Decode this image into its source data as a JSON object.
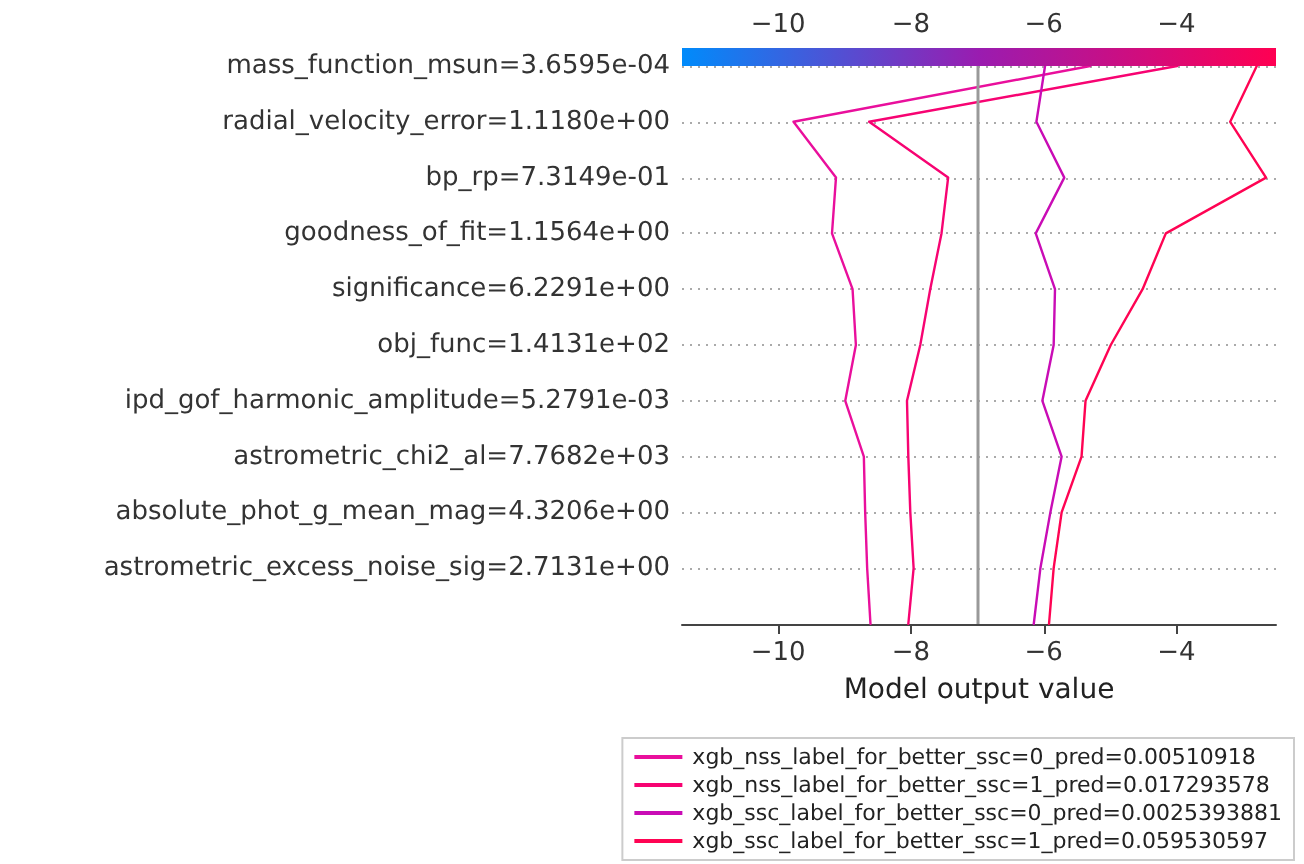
{
  "chart_data": {
    "type": "line",
    "orientation": "horizontal",
    "xlabel": "Model output value",
    "categories": [
      "mass_function_msun=3.6595e-04",
      "radial_velocity_error=1.1180e+00",
      "bp_rp=7.3149e-01",
      "goodness_of_fit=1.1564e+00",
      "significance=6.2291e+00",
      "obj_func=1.4131e+02",
      "ipd_gof_harmonic_amplitude=5.2791e-03",
      "astrometric_chi2_al=7.7682e+03",
      "absolute_phot_g_mean_mag=4.3206e+00",
      "astrometric_excess_noise_sig=2.7131e+00",
      null
    ],
    "xlim": [
      -11.45,
      -2.5
    ],
    "xticks": [
      -10,
      -8,
      -6,
      -4
    ],
    "x2lim": [
      -11.45,
      -2.5
    ],
    "x2ticks": [
      -10,
      -8,
      -6,
      -4
    ],
    "grid": "y",
    "legend": "bottom right",
    "marker": "none",
    "line_style": "solid",
    "ref_lines": [
      {
        "axis": "x",
        "value": -7,
        "color": "#999999"
      }
    ],
    "series": [
      {
        "name": "xgb_nss_label_for_better_ssc=0_pred=0.00510918",
        "color": "#e90f9c",
        "values": [
          -5.3,
          -9.77,
          -9.13,
          -9.19,
          -8.88,
          -8.83,
          -8.99,
          -8.71,
          -8.69,
          -8.66,
          -8.61
        ]
      },
      {
        "name": "xgb_nss_label_for_better_ssc=1_pred=0.017293578",
        "color": "#f70372",
        "values": [
          -3.99,
          -8.63,
          -7.44,
          -7.54,
          -7.71,
          -7.86,
          -8.06,
          -8.04,
          -8.01,
          -7.96,
          -8.04
        ]
      },
      {
        "name": "xgb_ssc_label_for_better_ssc=0_pred=0.0025393881",
        "color": "#c90cb5",
        "values": [
          -5.98,
          -6.11,
          -5.69,
          -6.12,
          -5.83,
          -5.85,
          -6.02,
          -5.73,
          -5.9,
          -6.05,
          -6.15
        ]
      },
      {
        "name": "xgb_ssc_label_for_better_ssc=1_pred=0.059530597",
        "color": "#ff0353",
        "values": [
          -2.79,
          -3.19,
          -2.65,
          -4.16,
          -4.51,
          -4.99,
          -5.37,
          -5.43,
          -5.73,
          -5.85,
          -5.92
        ]
      }
    ]
  }
}
